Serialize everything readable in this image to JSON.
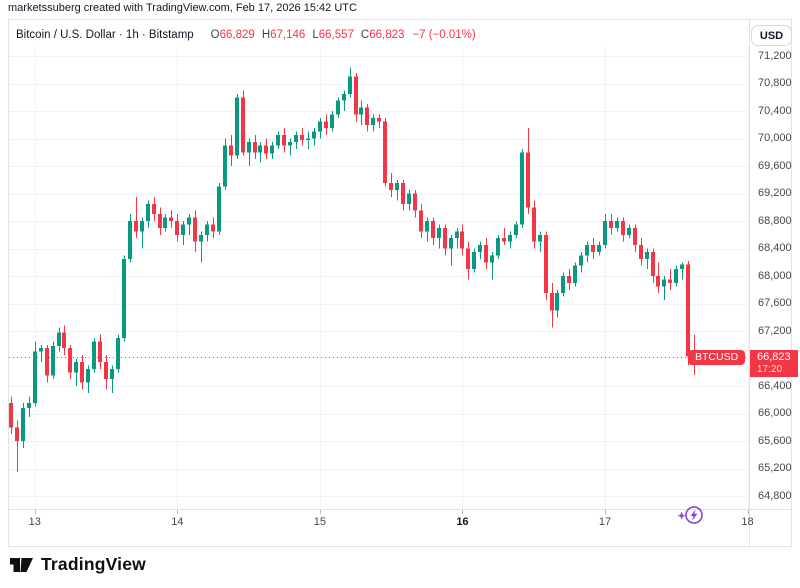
{
  "attribution": "marketssuberg created with TradingView.com, Feb 17, 2026 15:42 UTC",
  "header": {
    "symbol_title": "Bitcoin / U.S. Dollar · 1h · Bitstamp",
    "ohlc": [
      {
        "key": "O",
        "value": "66,829"
      },
      {
        "key": "H",
        "value": "67,146"
      },
      {
        "key": "L",
        "value": "66,557"
      },
      {
        "key": "C",
        "value": "66,823"
      }
    ],
    "change": "−7 (−0.01%)",
    "currency_button": "USD"
  },
  "price_line": {
    "label": "BTCUSD",
    "price": "66,823",
    "countdown": "17:20",
    "value": 66823
  },
  "axis": {
    "price_ticks": [
      {
        "value": 71200,
        "label": "71,200"
      },
      {
        "value": 70800,
        "label": "70,800"
      },
      {
        "value": 70400,
        "label": "70,400"
      },
      {
        "value": 70000,
        "label": "70,000"
      },
      {
        "value": 69600,
        "label": "69,600"
      },
      {
        "value": 69200,
        "label": "69,200"
      },
      {
        "value": 68800,
        "label": "68,800"
      },
      {
        "value": 68400,
        "label": "68,400"
      },
      {
        "value": 68000,
        "label": "68,000"
      },
      {
        "value": 67600,
        "label": "67,600"
      },
      {
        "value": 67200,
        "label": "67,200"
      },
      {
        "value": 66400,
        "label": "66,400"
      },
      {
        "value": 66000,
        "label": "66,000"
      },
      {
        "value": 65600,
        "label": "65,600"
      },
      {
        "value": 65200,
        "label": "65,200"
      },
      {
        "value": 64800,
        "label": "64,800"
      }
    ],
    "time_ticks": [
      {
        "label": "13",
        "idx": 4,
        "bold": false
      },
      {
        "label": "14",
        "idx": 28,
        "bold": false
      },
      {
        "label": "15",
        "idx": 52,
        "bold": false
      },
      {
        "label": "16",
        "idx": 76,
        "bold": true
      },
      {
        "label": "17",
        "idx": 100,
        "bold": false
      },
      {
        "label": "18",
        "idx": 124,
        "bold": false
      }
    ]
  },
  "footer": {
    "logo_text": "TradingView"
  },
  "colors": {
    "up": "#089981",
    "down": "#F23645",
    "accent": "#F23645",
    "grid": "#F0F3FA",
    "border": "#e0e3eb",
    "tick_mark": "#b8bbc4",
    "text": "#131722",
    "axis_text": "#44484f",
    "flash_purple": "#8a3fe0"
  },
  "chart_data": {
    "type": "candlestick",
    "symbol": "BTCUSD",
    "interval": "1h",
    "exchange": "Bitstamp",
    "title": "Bitcoin / U.S. Dollar",
    "ylabel": "USD",
    "ylim": [
      64611,
      71331
    ],
    "grid": true,
    "last_close": 66823,
    "candles": [
      [
        66150,
        66250,
        65700,
        65800
      ],
      [
        65800,
        65900,
        65150,
        65600
      ],
      [
        65600,
        66150,
        65500,
        66080
      ],
      [
        66080,
        66250,
        65950,
        66150
      ],
      [
        66150,
        67050,
        66100,
        66900
      ],
      [
        66900,
        67000,
        66750,
        66950
      ],
      [
        66950,
        67000,
        66450,
        66550
      ],
      [
        66550,
        67050,
        66500,
        66980
      ],
      [
        66980,
        67250,
        66900,
        67180
      ],
      [
        67180,
        67280,
        66850,
        66950
      ],
      [
        66950,
        67000,
        66500,
        66600
      ],
      [
        66600,
        66800,
        66400,
        66750
      ],
      [
        66750,
        66850,
        66350,
        66450
      ],
      [
        66450,
        66700,
        66300,
        66650
      ],
      [
        66650,
        67100,
        66600,
        67050
      ],
      [
        67050,
        67150,
        66650,
        66750
      ],
      [
        66750,
        66850,
        66350,
        66500
      ],
      [
        66500,
        66700,
        66300,
        66650
      ],
      [
        66650,
        67150,
        66600,
        67100
      ],
      [
        67100,
        68300,
        67050,
        68250
      ],
      [
        68250,
        68900,
        68200,
        68800
      ],
      [
        68800,
        69150,
        68550,
        68650
      ],
      [
        68650,
        68850,
        68400,
        68800
      ],
      [
        68800,
        69100,
        68700,
        69050
      ],
      [
        69050,
        69150,
        68800,
        68900
      ],
      [
        68900,
        69000,
        68600,
        68700
      ],
      [
        68700,
        68900,
        68650,
        68850
      ],
      [
        68850,
        68950,
        68700,
        68800
      ],
      [
        68800,
        68900,
        68500,
        68600
      ],
      [
        68600,
        68800,
        68450,
        68750
      ],
      [
        68750,
        68900,
        68600,
        68850
      ],
      [
        68850,
        68950,
        68350,
        68500
      ],
      [
        68500,
        68650,
        68200,
        68600
      ],
      [
        68600,
        68800,
        68500,
        68750
      ],
      [
        68750,
        68850,
        68550,
        68650
      ],
      [
        68650,
        69350,
        68600,
        69300
      ],
      [
        69300,
        70000,
        69250,
        69900
      ],
      [
        69900,
        70050,
        69600,
        69750
      ],
      [
        69750,
        70650,
        69700,
        70600
      ],
      [
        70600,
        70700,
        69750,
        69800
      ],
      [
        69800,
        70000,
        69600,
        69950
      ],
      [
        69950,
        70050,
        69700,
        69800
      ],
      [
        69800,
        69950,
        69650,
        69900
      ],
      [
        69900,
        70000,
        69700,
        69780
      ],
      [
        69780,
        69950,
        69700,
        69900
      ],
      [
        69900,
        70100,
        69850,
        70050
      ],
      [
        70050,
        70150,
        69800,
        69900
      ],
      [
        69900,
        70000,
        69750,
        69950
      ],
      [
        69950,
        70100,
        69850,
        70050
      ],
      [
        70050,
        70150,
        69900,
        69980
      ],
      [
        69980,
        70100,
        69850,
        70000
      ],
      [
        70000,
        70150,
        69900,
        70100
      ],
      [
        70100,
        70300,
        70000,
        70250
      ],
      [
        70250,
        70350,
        70050,
        70150
      ],
      [
        70150,
        70400,
        70100,
        70350
      ],
      [
        70350,
        70600,
        70300,
        70550
      ],
      [
        70550,
        70700,
        70400,
        70650
      ],
      [
        70650,
        71030,
        70600,
        70900
      ],
      [
        70900,
        70950,
        70250,
        70350
      ],
      [
        70350,
        70550,
        70200,
        70450
      ],
      [
        70450,
        70500,
        70100,
        70200
      ],
      [
        70200,
        70350,
        70100,
        70300
      ],
      [
        70300,
        70350,
        70150,
        70250
      ],
      [
        70250,
        70300,
        69300,
        69350
      ],
      [
        69350,
        69500,
        69150,
        69250
      ],
      [
        69250,
        69400,
        69100,
        69350
      ],
      [
        69350,
        69400,
        68950,
        69050
      ],
      [
        69050,
        69250,
        68950,
        69200
      ],
      [
        69200,
        69250,
        68850,
        68950
      ],
      [
        68950,
        69050,
        68550,
        68650
      ],
      [
        68650,
        68850,
        68500,
        68800
      ],
      [
        68800,
        68850,
        68450,
        68550
      ],
      [
        68550,
        68750,
        68400,
        68700
      ],
      [
        68700,
        68750,
        68300,
        68400
      ],
      [
        68400,
        68600,
        68150,
        68550
      ],
      [
        68550,
        68700,
        68400,
        68650
      ],
      [
        68650,
        68750,
        68300,
        68400
      ],
      [
        68400,
        68500,
        67950,
        68100
      ],
      [
        68100,
        68400,
        68050,
        68350
      ],
      [
        68350,
        68500,
        68250,
        68450
      ],
      [
        68450,
        68550,
        68100,
        68200
      ],
      [
        68200,
        68350,
        67950,
        68300
      ],
      [
        68300,
        68600,
        68250,
        68550
      ],
      [
        68550,
        68700,
        68450,
        68500
      ],
      [
        68500,
        68650,
        68400,
        68600
      ],
      [
        68600,
        68800,
        68550,
        68750
      ],
      [
        68750,
        69850,
        68700,
        69800
      ],
      [
        69800,
        70150,
        68900,
        69000
      ],
      [
        69000,
        69100,
        68400,
        68500
      ],
      [
        68500,
        68650,
        68350,
        68600
      ],
      [
        68600,
        68650,
        67650,
        67750
      ],
      [
        67750,
        67900,
        67250,
        67500
      ],
      [
        67500,
        67800,
        67400,
        67750
      ],
      [
        67750,
        68050,
        67700,
        68000
      ],
      [
        68000,
        68100,
        67800,
        67900
      ],
      [
        67900,
        68200,
        67850,
        68150
      ],
      [
        68150,
        68350,
        68050,
        68300
      ],
      [
        68300,
        68500,
        68200,
        68450
      ],
      [
        68450,
        68550,
        68250,
        68350
      ],
      [
        68350,
        68500,
        68300,
        68450
      ],
      [
        68450,
        68900,
        68400,
        68800
      ],
      [
        68800,
        68900,
        68600,
        68700
      ],
      [
        68700,
        68850,
        68650,
        68800
      ],
      [
        68800,
        68850,
        68500,
        68600
      ],
      [
        68600,
        68750,
        68550,
        68700
      ],
      [
        68700,
        68750,
        68350,
        68450
      ],
      [
        68450,
        68550,
        68150,
        68250
      ],
      [
        68250,
        68400,
        68100,
        68350
      ],
      [
        68350,
        68400,
        67900,
        68000
      ],
      [
        68000,
        68200,
        67750,
        67850
      ],
      [
        67850,
        68000,
        67650,
        67950
      ],
      [
        67950,
        68100,
        67800,
        67900
      ],
      [
        67900,
        68150,
        67850,
        68100
      ],
      [
        68100,
        68200,
        67950,
        68170
      ],
      [
        68170,
        68220,
        66700,
        66830
      ],
      [
        66829,
        67146,
        66557,
        66823
      ]
    ]
  }
}
